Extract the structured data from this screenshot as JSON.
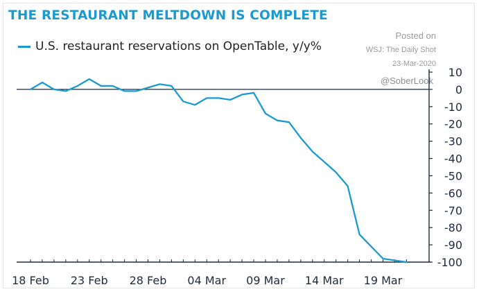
{
  "chart_data": {
    "type": "line",
    "title": "THE RESTAURANT MELTDOWN IS COMPLETE",
    "xlabel": "",
    "ylabel": "",
    "x_tick_labels": [
      "18 Feb",
      "23 Feb",
      "28 Feb",
      "04 Mar",
      "09 Mar",
      "14 Mar",
      "19 Mar"
    ],
    "y_ticks": [
      10,
      0,
      -10,
      -20,
      -30,
      -40,
      -50,
      -60,
      -70,
      -80,
      -90,
      -100
    ],
    "ylim": [
      -100,
      10
    ],
    "y_axis_position": "right",
    "grid": false,
    "legend_position": "top-left",
    "series": [
      {
        "name": "U.S. restaurant reservations on OpenTable, y/y%",
        "x": [
          "18 Feb",
          "19 Feb",
          "20 Feb",
          "21 Feb",
          "22 Feb",
          "23 Feb",
          "24 Feb",
          "25 Feb",
          "26 Feb",
          "27 Feb",
          "28 Feb",
          "29 Feb",
          "01 Mar",
          "02 Mar",
          "03 Mar",
          "04 Mar",
          "05 Mar",
          "06 Mar",
          "07 Mar",
          "08 Mar",
          "09 Mar",
          "10 Mar",
          "11 Mar",
          "12 Mar",
          "13 Mar",
          "14 Mar",
          "15 Mar",
          "16 Mar",
          "17 Mar",
          "18 Mar",
          "19 Mar",
          "20 Mar",
          "21 Mar"
        ],
        "values": [
          0,
          4,
          0,
          -1,
          2,
          6,
          2,
          2,
          -1,
          -1,
          1,
          3,
          2,
          -7,
          -9,
          -5,
          -5,
          -6,
          -3,
          -2,
          -14,
          -18,
          -19,
          -28,
          -36,
          -42,
          -48,
          -56,
          -84,
          -91,
          -98,
          -99,
          -100
        ]
      }
    ]
  },
  "title": "THE RESTAURANT MELTDOWN IS COMPLETE",
  "legend_label": "U.S. restaurant reservations on OpenTable, y/y%",
  "source": {
    "posted": "Posted on",
    "outlet": "WSJ: The Daily Shot",
    "date": "23-Mar-2020",
    "handle": "@SoberLook"
  },
  "colors": {
    "title": "#1a9ad0",
    "line": "#1a9ad0",
    "axis": "#1f2a3c",
    "text": "#1f2a3c"
  }
}
